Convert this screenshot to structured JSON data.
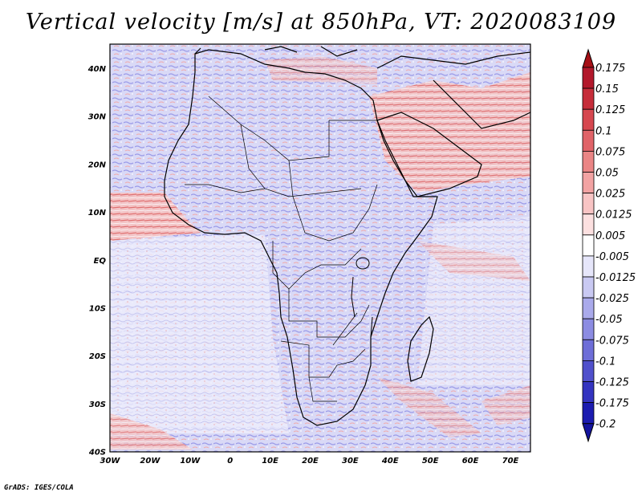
{
  "title": "Vertical velocity [m/s] at 850hPa, VT: 2020083109",
  "footer": "GrADS: IGES/COLA",
  "map": {
    "lon_range": [
      -30,
      75
    ],
    "lat_range": [
      -40,
      45
    ],
    "lat_ticks": [
      "40N",
      "30N",
      "20N",
      "10N",
      "EQ",
      "10S",
      "20S",
      "30S",
      "40S"
    ],
    "lon_ticks": [
      "30W",
      "20W",
      "10W",
      "0",
      "10E",
      "20E",
      "30E",
      "40E",
      "50E",
      "60E",
      "70E"
    ]
  },
  "colorbar": {
    "labels": [
      "0.175",
      "0.15",
      "0.125",
      "0.1",
      "0.075",
      "0.05",
      "0.025",
      "0.0125",
      "0.005",
      "-0.005",
      "-0.0125",
      "-0.025",
      "-0.05",
      "-0.075",
      "-0.1",
      "-0.125",
      "-0.175",
      "-0.2"
    ],
    "colors": [
      "#b2182b",
      "#c62d3a",
      "#d6474f",
      "#e06368",
      "#ea8585",
      "#f2a3a3",
      "#f8c4c4",
      "#fce0e0",
      "#ffffff",
      "#e6e6fa",
      "#c9c9f2",
      "#aaaaeb",
      "#8c8ce2",
      "#6e6ed8",
      "#5050cc",
      "#3434c0",
      "#1c1cb0"
    ],
    "min_color": "#14149e",
    "max_color": "#a50f15"
  },
  "colors": {
    "neg": "#b3b3ee",
    "pos": "#f3b1b1",
    "coast": "#000000"
  }
}
